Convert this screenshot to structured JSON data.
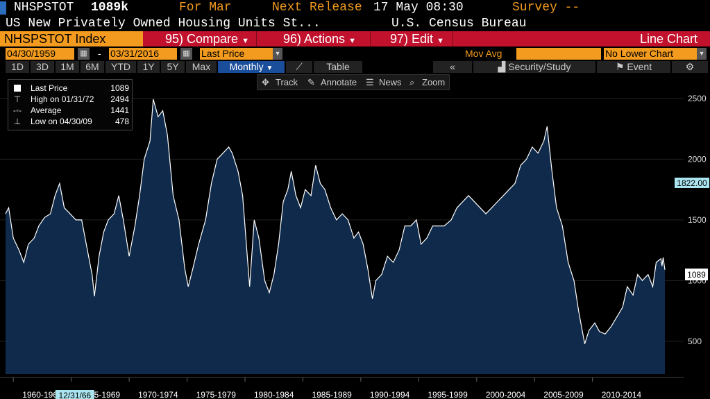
{
  "header": {
    "ticker": "NHSPSTOT",
    "last_value": "1089k",
    "for_label": "For Mar",
    "next_release_label": "Next Release",
    "next_release_value": "17 May 08:30",
    "survey_label": "Survey --",
    "description": "US New Privately Owned Housing Units St...",
    "source": "U.S. Census Bureau"
  },
  "toolbar": {
    "index_label": "NHSPSTOT Index",
    "compare_label": "95) Compare",
    "actions_label": "96) Actions",
    "edit_label": "97) Edit",
    "chart_type": "Line Chart"
  },
  "controls": {
    "start_date": "04/30/1959",
    "dash": "-",
    "end_date": "03/31/2016",
    "field": "Last Price",
    "mov_avg_label": "Mov Avg",
    "lower_chart": "No Lower Chart",
    "periods": [
      "1D",
      "3D",
      "1M",
      "6M",
      "YTD",
      "1Y",
      "5Y",
      "Max"
    ],
    "frequency": "Monthly",
    "table_label": "Table",
    "back_label": "«",
    "security_study_label": "Security/Study",
    "event_label": "Event"
  },
  "chart_tools": {
    "track": "Track",
    "annotate": "Annotate",
    "news": "News",
    "zoom": "Zoom"
  },
  "legend": {
    "last_label": "Last Price",
    "last_value": "1089",
    "high_label": "High on 01/31/72",
    "high_value": "2494",
    "avg_label": "Average",
    "avg_value": "1441",
    "low_label": "Low on 04/30/09",
    "low_value": "478"
  },
  "colors": {
    "accent_orange": "#f39b1e",
    "toolbar_red": "#c1112d",
    "area_fill": "#0f2a4a",
    "line": "#ffffff",
    "highlight_cyan": "#a9e4ef"
  },
  "chart_data": {
    "type": "area",
    "series": [
      {
        "values": [
          [
            1959.33,
            1550
          ],
          [
            1959.6,
            1600
          ],
          [
            1960.0,
            1350
          ],
          [
            1960.5,
            1250
          ],
          [
            1960.9,
            1150
          ],
          [
            1961.3,
            1300
          ],
          [
            1961.8,
            1350
          ],
          [
            1962.2,
            1450
          ],
          [
            1962.7,
            1520
          ],
          [
            1963.2,
            1550
          ],
          [
            1963.6,
            1700
          ],
          [
            1964.0,
            1800
          ],
          [
            1964.4,
            1600
          ],
          [
            1964.9,
            1550
          ],
          [
            1965.4,
            1500
          ],
          [
            1965.9,
            1500
          ],
          [
            1966.3,
            1300
          ],
          [
            1966.8,
            1050
          ],
          [
            1967.0,
            870
          ],
          [
            1967.4,
            1200
          ],
          [
            1967.8,
            1400
          ],
          [
            1968.2,
            1500
          ],
          [
            1968.7,
            1550
          ],
          [
            1969.1,
            1700
          ],
          [
            1969.5,
            1500
          ],
          [
            1970.0,
            1200
          ],
          [
            1970.5,
            1450
          ],
          [
            1970.9,
            1700
          ],
          [
            1971.3,
            2000
          ],
          [
            1971.8,
            2150
          ],
          [
            1972.08,
            2494
          ],
          [
            1972.5,
            2350
          ],
          [
            1972.9,
            2400
          ],
          [
            1973.3,
            2200
          ],
          [
            1973.8,
            1700
          ],
          [
            1974.3,
            1500
          ],
          [
            1974.8,
            1100
          ],
          [
            1975.1,
            950
          ],
          [
            1975.5,
            1100
          ],
          [
            1976.0,
            1300
          ],
          [
            1976.6,
            1500
          ],
          [
            1977.1,
            1800
          ],
          [
            1977.6,
            2000
          ],
          [
            1978.1,
            2050
          ],
          [
            1978.6,
            2100
          ],
          [
            1978.9,
            2050
          ],
          [
            1979.4,
            1900
          ],
          [
            1979.8,
            1700
          ],
          [
            1980.2,
            1200
          ],
          [
            1980.4,
            950
          ],
          [
            1980.8,
            1500
          ],
          [
            1981.2,
            1350
          ],
          [
            1981.7,
            1000
          ],
          [
            1982.1,
            900
          ],
          [
            1982.5,
            1050
          ],
          [
            1982.9,
            1300
          ],
          [
            1983.3,
            1650
          ],
          [
            1983.7,
            1750
          ],
          [
            1984.0,
            1900
          ],
          [
            1984.4,
            1700
          ],
          [
            1984.8,
            1600
          ],
          [
            1985.2,
            1750
          ],
          [
            1985.7,
            1700
          ],
          [
            1986.1,
            1950
          ],
          [
            1986.5,
            1800
          ],
          [
            1986.9,
            1750
          ],
          [
            1987.4,
            1600
          ],
          [
            1987.9,
            1500
          ],
          [
            1988.4,
            1550
          ],
          [
            1988.9,
            1500
          ],
          [
            1989.4,
            1350
          ],
          [
            1989.8,
            1400
          ],
          [
            1990.2,
            1300
          ],
          [
            1990.6,
            1100
          ],
          [
            1991.0,
            850
          ],
          [
            1991.3,
            1000
          ],
          [
            1991.8,
            1050
          ],
          [
            1992.3,
            1200
          ],
          [
            1992.8,
            1150
          ],
          [
            1993.3,
            1250
          ],
          [
            1993.8,
            1450
          ],
          [
            1994.3,
            1450
          ],
          [
            1994.8,
            1500
          ],
          [
            1995.2,
            1300
          ],
          [
            1995.7,
            1350
          ],
          [
            1996.2,
            1450
          ],
          [
            1996.7,
            1450
          ],
          [
            1997.2,
            1450
          ],
          [
            1997.8,
            1500
          ],
          [
            1998.3,
            1600
          ],
          [
            1998.8,
            1650
          ],
          [
            1999.3,
            1700
          ],
          [
            1999.8,
            1650
          ],
          [
            2000.3,
            1600
          ],
          [
            2000.8,
            1550
          ],
          [
            2001.3,
            1600
          ],
          [
            2001.8,
            1650
          ],
          [
            2002.3,
            1700
          ],
          [
            2002.8,
            1750
          ],
          [
            2003.3,
            1800
          ],
          [
            2003.8,
            1950
          ],
          [
            2004.3,
            2000
          ],
          [
            2004.8,
            2100
          ],
          [
            2005.3,
            2050
          ],
          [
            2005.8,
            2150
          ],
          [
            2006.08,
            2270
          ],
          [
            2006.5,
            1900
          ],
          [
            2006.9,
            1600
          ],
          [
            2007.4,
            1450
          ],
          [
            2007.9,
            1150
          ],
          [
            2008.4,
            1000
          ],
          [
            2008.8,
            750
          ],
          [
            2009.33,
            478
          ],
          [
            2009.7,
            590
          ],
          [
            2010.2,
            650
          ],
          [
            2010.6,
            580
          ],
          [
            2011.1,
            560
          ],
          [
            2011.6,
            620
          ],
          [
            2012.1,
            700
          ],
          [
            2012.6,
            780
          ],
          [
            2013.0,
            950
          ],
          [
            2013.5,
            880
          ],
          [
            2013.9,
            1050
          ],
          [
            2014.3,
            1000
          ],
          [
            2014.8,
            1050
          ],
          [
            2015.2,
            950
          ],
          [
            2015.5,
            1150
          ],
          [
            2015.9,
            1180
          ],
          [
            2016.0,
            1120
          ],
          [
            2016.1,
            1190
          ],
          [
            2016.25,
            1089
          ]
        ]
      }
    ],
    "last_value_label": "1089",
    "marker_value_label": "1822.00",
    "marker_value": 1822,
    "xlim": [
      1959.33,
      2016.25
    ],
    "ylim": [
      230,
      2700
    ],
    "y_ticks": [
      "500",
      "1000",
      "1500",
      "2000",
      "2500"
    ],
    "x_ticks": [
      "1960-1964",
      "1965-1969",
      "1970-1974",
      "1975-1979",
      "1980-1984",
      "1985-1989",
      "1990-1994",
      "1995-1999",
      "2000-2004",
      "2005-2009",
      "2010-2014"
    ],
    "x_highlight": "12/31/66",
    "grid": true
  }
}
